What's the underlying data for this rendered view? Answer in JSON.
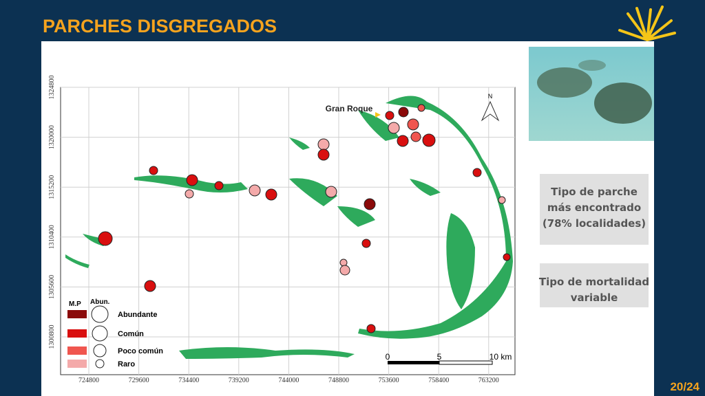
{
  "header": {
    "title": "PARCHES DISGREGADOS"
  },
  "map": {
    "x_ticks": [
      "724800",
      "729600",
      "734400",
      "739200",
      "744000",
      "748800",
      "753600",
      "758400",
      "763200"
    ],
    "y_ticks": [
      "1324800",
      "1320000",
      "1315200",
      "1310400",
      "1305600",
      "1300800"
    ],
    "place_label": "Gran Roque",
    "north": "N",
    "scale_labels": [
      "0",
      "5",
      "10 km"
    ],
    "land_color": "#2eaa5c"
  },
  "legend": {
    "headers": [
      "M.P",
      "Abun."
    ],
    "items": [
      {
        "label": "Abundante",
        "color": "#8b0a0a"
      },
      {
        "label": "Común",
        "color": "#d90f0f"
      },
      {
        "label": "Poco común",
        "color": "#f0564f"
      },
      {
        "label": "Raro",
        "color": "#f4aaaa"
      }
    ]
  },
  "cards": [
    {
      "lines": [
        "Tipo de parche",
        "más encontrado",
        "(78% localidades)"
      ]
    },
    {
      "lines": [
        "Tipo de mortalidad",
        "variable"
      ]
    }
  ],
  "page_number": "20/24"
}
